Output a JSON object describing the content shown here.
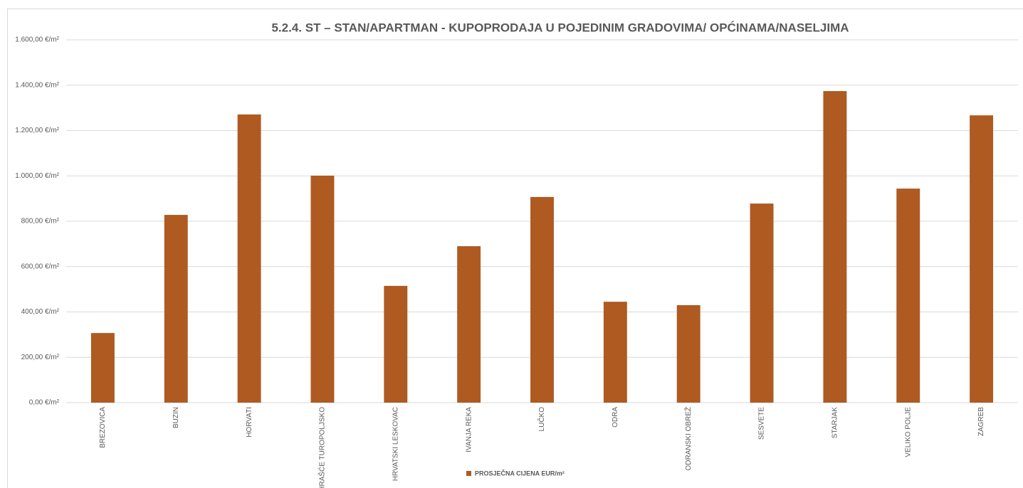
{
  "chart_data": {
    "type": "bar",
    "title": "5.2.4. ST – STAN/APARTMAN - KUPOPRODAJA U POJEDINIM GRADOVIMA/ OPĆINAMA/NASELJIMA",
    "categories": [
      "BREZOVICA",
      "BUZIN",
      "HORVATI",
      "HRAŠĆE TUROPOLJSKO",
      "HRVATSKI LESKOVAC",
      "IVANJA REKA",
      "LUČKO",
      "ODRA",
      "ODRANSKI OBREŽ",
      "SESVETE",
      "STARJAK",
      "VELIKO POLJE",
      "ZAGREB"
    ],
    "series": [
      {
        "name": "PROSJEČNA CIJENA EUR/m²",
        "color": "#ae5a21",
        "values": [
          307,
          828,
          1271,
          1001,
          515,
          690,
          907,
          445,
          430,
          878,
          1374,
          944,
          1267
        ]
      }
    ],
    "ylim": [
      0,
      1600
    ],
    "yticks": [
      {
        "value": 0,
        "label": "0,00 €/m²"
      },
      {
        "value": 200,
        "label": "200,00 €/m²"
      },
      {
        "value": 400,
        "label": "400,00 €/m²"
      },
      {
        "value": 600,
        "label": "600,00 €/m²"
      },
      {
        "value": 800,
        "label": "800,00 €/m²"
      },
      {
        "value": 1000,
        "label": "1.000,00 €/m²"
      },
      {
        "value": 1200,
        "label": "1.200,00 €/m²"
      },
      {
        "value": 1400,
        "label": "1.400,00 €/m²"
      },
      {
        "value": 1600,
        "label": "1.600,00 €/m²"
      }
    ],
    "grid": true,
    "legend": "bottom"
  }
}
